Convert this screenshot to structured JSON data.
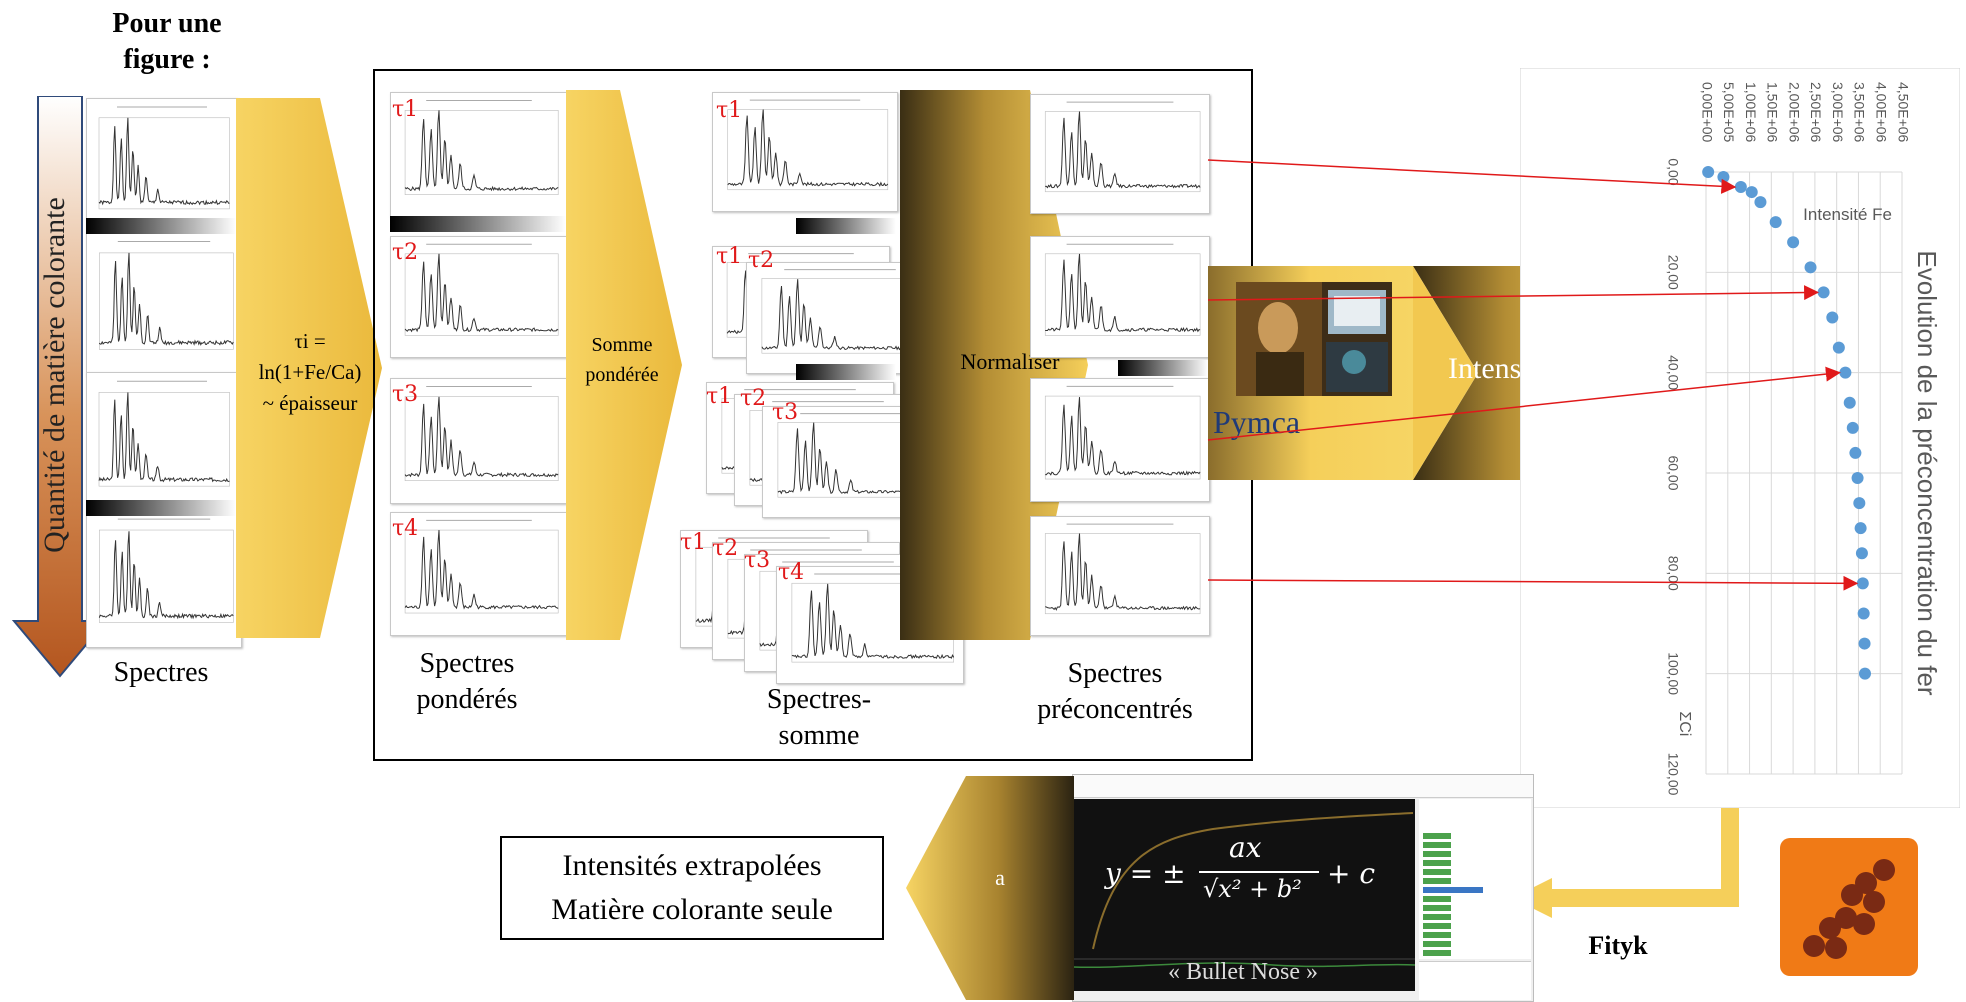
{
  "intro_title": "Pour une\nfigure :",
  "vertical_arrow_label": "Quantité de matière colorante",
  "stage_labels": {
    "spectres": "Spectres",
    "spectres_ponderes": "Spectres\npondérés",
    "spectres_somme": "Spectres-\nsomme",
    "spectres_preconcentres": "Spectres\npréconcentrés"
  },
  "arrows": {
    "tau_formula": "τi =\nln(1+Fe/Ca)\n~ épaisseur",
    "somme": "Somme\npondérée",
    "normaliser": "Normaliser",
    "pymca": "Pymca",
    "intensites": "Intensités",
    "fit_label": "a",
    "fityk": "Fityk"
  },
  "tau_labels": [
    "τ1",
    "τ2",
    "τ3",
    "τ4"
  ],
  "formula": {
    "lhs": "y = ±",
    "numerator": "ax",
    "denominator": "√x² + b²",
    "rhs": "+ c",
    "name": "« Bullet Nose »"
  },
  "result_box": {
    "line1": "Intensités extrapolées",
    "line2": "Matière colorante seule"
  },
  "chart_data": {
    "type": "scatter",
    "title": "Evolution de la préconcentration du fer",
    "series": [
      {
        "name": "Intensité Fe",
        "x": [
          50000.0,
          400000.0,
          800000.0,
          1050000.0,
          1250000.0,
          1600000.0,
          2000000.0,
          2400000.0,
          2700000.0,
          2900000.0,
          3050000.0,
          3200000.0,
          3300000.0,
          3370000.0,
          3430000.0,
          3480000.0,
          3520000.0,
          3550000.0,
          3580000.0,
          3600000.0,
          3620000.0,
          3640000.0,
          3650000.0
        ],
        "y": [
          0,
          1,
          3,
          4,
          6,
          10,
          14,
          19,
          24,
          29,
          35,
          40,
          46,
          51,
          56,
          61,
          66,
          71,
          76,
          82,
          88,
          94,
          100
        ]
      }
    ],
    "xlabel": "",
    "ylabel": "ΣCi",
    "x_ticks": [
      "0,00E+00",
      "5,00E+05",
      "1,00E+06",
      "1,50E+06",
      "2,00E+06",
      "2,50E+06",
      "3,00E+06",
      "3,50E+06",
      "4,00E+06",
      "4,50E+06"
    ],
    "y_ticks": [
      "0,00",
      "20,00",
      "40,00",
      "60,00",
      "80,00",
      "100,00",
      "120,00"
    ],
    "xlim": [
      0,
      4500000
    ],
    "ylim": [
      0,
      120
    ],
    "legend_position": "top-right",
    "grid": true,
    "color": "#5b9bd5"
  }
}
